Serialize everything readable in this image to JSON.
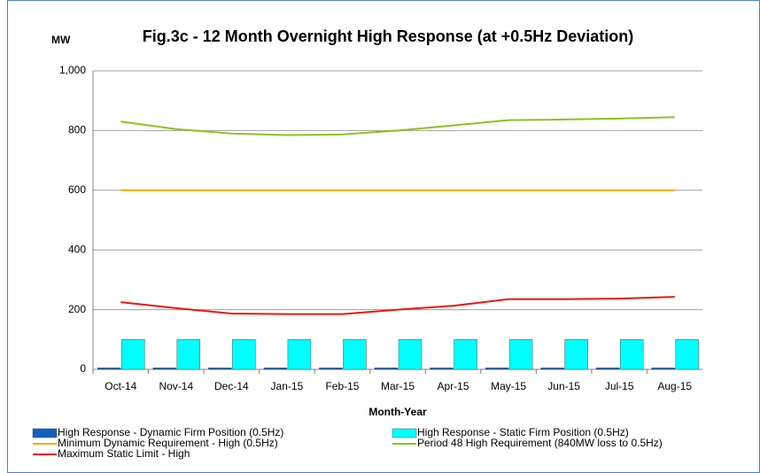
{
  "chart_data": {
    "type": "bar_line",
    "title": "Fig.3c - 12 Month Overnight High Response (at +0.5Hz Deviation)",
    "y_label": "MW",
    "x_label": "Month-Year",
    "categories": [
      "Oct-14",
      "Nov-14",
      "Dec-14",
      "Jan-15",
      "Feb-15",
      "Mar-15",
      "Apr-15",
      "May-15",
      "Jun-15",
      "Jul-15",
      "Aug-15"
    ],
    "ylim": [
      0,
      1000
    ],
    "yticks": [
      0,
      200,
      400,
      600,
      800,
      {
        "value": 1000,
        "label": "1,000"
      }
    ],
    "grid": true,
    "series": [
      {
        "name": "High Response - Dynamic Firm Position (0.5Hz)",
        "kind": "bar",
        "color": "#1060c0",
        "values": [
          5,
          5,
          5,
          5,
          5,
          5,
          5,
          5,
          5,
          5,
          5
        ]
      },
      {
        "name": "High Response - Static Firm Position (0.5Hz)",
        "kind": "bar",
        "color": "#00ffff",
        "values": [
          100,
          100,
          100,
          100,
          100,
          100,
          100,
          100,
          100,
          100,
          100
        ]
      },
      {
        "name": "Minimum Dynamic Requirement - High (0.5Hz)",
        "kind": "line",
        "color": "#ffa500",
        "values": [
          600,
          600,
          600,
          600,
          600,
          600,
          600,
          600,
          600,
          600,
          600
        ]
      },
      {
        "name": "Period 48 High Requirement (840MW loss to 0.5Hz)",
        "kind": "line",
        "color": "#8dc21f",
        "values": [
          830,
          805,
          790,
          785,
          787,
          800,
          817,
          835,
          837,
          840,
          845
        ]
      },
      {
        "name": "Maximum Static Limit - High",
        "kind": "line",
        "color": "#e8190e",
        "values": [
          225,
          205,
          187,
          185,
          185,
          200,
          213,
          235,
          235,
          237,
          243
        ]
      }
    ]
  }
}
